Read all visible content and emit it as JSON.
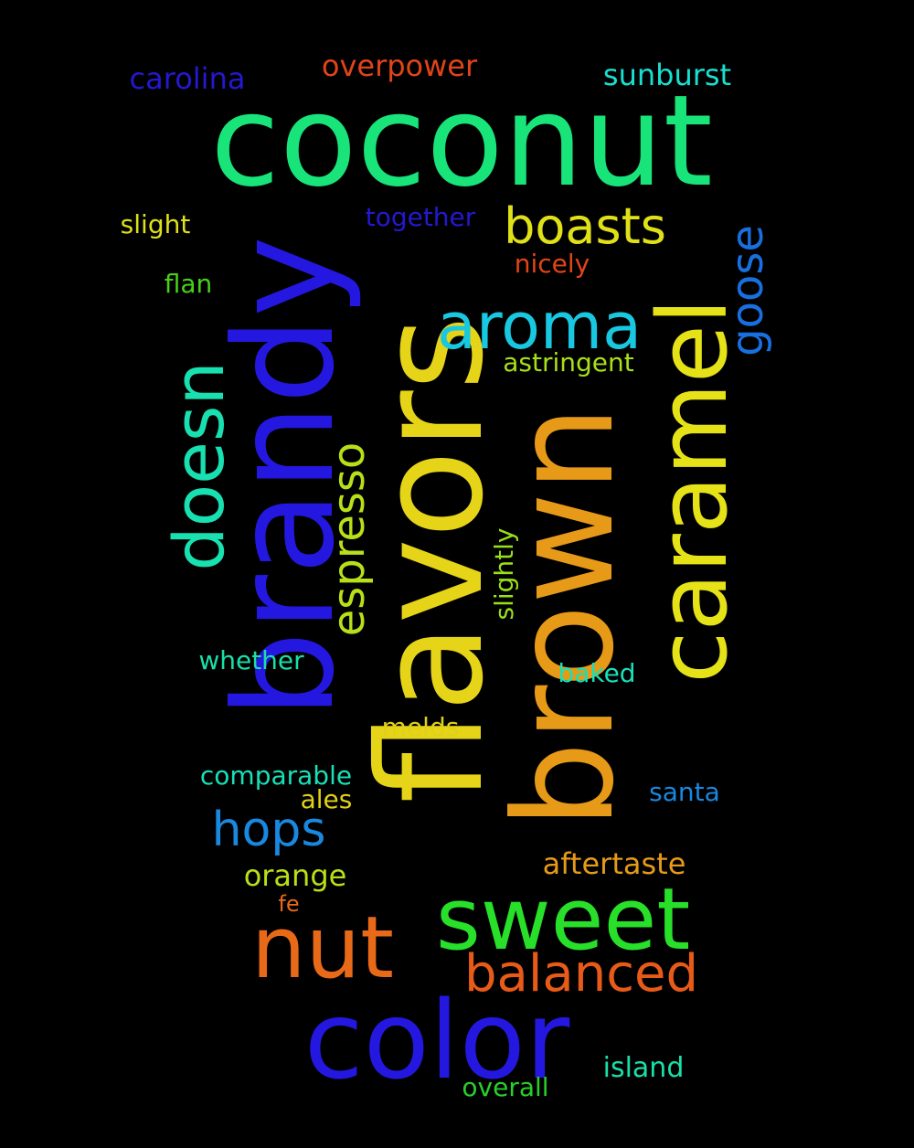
{
  "words": [
    {
      "id": "coconut",
      "text": "coconut",
      "color": "#18e47a"
    },
    {
      "id": "brandy",
      "text": "brandy",
      "color": "#2418e0"
    },
    {
      "id": "flavors",
      "text": "flavors",
      "color": "#e6d418"
    },
    {
      "id": "brown",
      "text": "brown",
      "color": "#e69a18"
    },
    {
      "id": "caramel",
      "text": "caramel",
      "color": "#e6e218"
    },
    {
      "id": "color",
      "text": "color",
      "color": "#2418e0"
    },
    {
      "id": "sweet",
      "text": "sweet",
      "color": "#28e02a"
    },
    {
      "id": "nut",
      "text": "nut",
      "color": "#e86a18"
    },
    {
      "id": "aroma",
      "text": "aroma",
      "color": "#18c8e0"
    },
    {
      "id": "doesn",
      "text": "doesn",
      "color": "#18e0b0"
    },
    {
      "id": "espresso",
      "text": "espresso",
      "color": "#b8e018"
    },
    {
      "id": "boasts",
      "text": "boasts",
      "color": "#e0e018"
    },
    {
      "id": "goose",
      "text": "goose",
      "color": "#1870e0"
    },
    {
      "id": "balanced",
      "text": "balanced",
      "color": "#e85a18"
    },
    {
      "id": "hops",
      "text": "hops",
      "color": "#1888e0"
    },
    {
      "id": "overpower",
      "text": "overpower",
      "color": "#e04418"
    },
    {
      "id": "carolina",
      "text": "carolina",
      "color": "#2418d0"
    },
    {
      "id": "sunburst",
      "text": "sunburst",
      "color": "#18e0d0"
    },
    {
      "id": "slight",
      "text": "slight",
      "color": "#e0e018"
    },
    {
      "id": "together",
      "text": "together",
      "color": "#2418d0"
    },
    {
      "id": "nicely",
      "text": "nicely",
      "color": "#e04418"
    },
    {
      "id": "flan",
      "text": "flan",
      "color": "#48d018"
    },
    {
      "id": "astringent",
      "text": "astringent",
      "color": "#a8e018"
    },
    {
      "id": "slightly",
      "text": "slightly",
      "color": "#98e018"
    },
    {
      "id": "whether",
      "text": "whether",
      "color": "#18e0a8"
    },
    {
      "id": "baked",
      "text": "baked",
      "color": "#18e0b8"
    },
    {
      "id": "melds",
      "text": "melds",
      "color": "#e0d018"
    },
    {
      "id": "comparable",
      "text": "comparable",
      "color": "#18e0b8"
    },
    {
      "id": "ales",
      "text": "ales",
      "color": "#e0d018"
    },
    {
      "id": "santa",
      "text": "santa",
      "color": "#1888e0"
    },
    {
      "id": "aftertaste",
      "text": "aftertaste",
      "color": "#e69a18"
    },
    {
      "id": "orange",
      "text": "orange",
      "color": "#b8e018"
    },
    {
      "id": "fe",
      "text": "fe",
      "color": "#e86a18"
    },
    {
      "id": "island",
      "text": "island",
      "color": "#18e0a8"
    },
    {
      "id": "overall",
      "text": "overall",
      "color": "#28d028"
    }
  ]
}
